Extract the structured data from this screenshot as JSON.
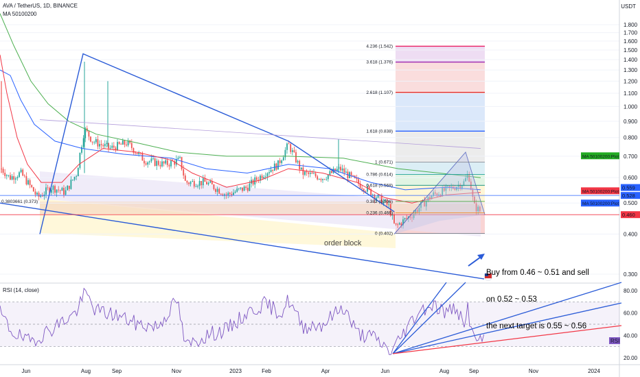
{
  "header": {
    "symbol": "AVA / TetherUS, 1D, BINANCE",
    "indicator": "MA 50100200",
    "currency": "USDT"
  },
  "annotations": {
    "order_block": "order block",
    "note_lines": [
      "Buy from 0.46 ~ 0.51 and sell",
      "on 0.52 ~ 0.53",
      "the next target is 0.55 ~ 0.56"
    ]
  },
  "colors": {
    "up": "#26a69a",
    "down": "#ef5350",
    "trend": "#2a5bd7",
    "ma_green": "#4caf50",
    "ma_red": "#f23645",
    "ma_blue": "#2962ff",
    "rsi": "#7e57c2"
  },
  "chart_data": [
    {
      "type": "candlestick",
      "title": "AVA / TetherUS, 1D, BINANCE",
      "y_axis": {
        "scale": "log",
        "range": [
          0.26,
          1.95
        ],
        "ticks": [
          "1.800",
          "1.700",
          "1.600",
          "1.500",
          "1.400",
          "1.300",
          "1.200",
          "1.100",
          "1.000",
          "0.900",
          "0.800",
          "0.700",
          "0.600",
          "0.500",
          "0.400",
          "0.300"
        ]
      },
      "x_axis": {
        "ticks": [
          "Jun",
          "Aug",
          "Sep",
          "Nov",
          "2023",
          "Feb",
          "Apr",
          "Jun",
          "Aug",
          "Sep",
          "Nov",
          "2024"
        ]
      },
      "price_labels": [
        {
          "text": "MA 50100200:Plot",
          "value": 0.702,
          "color": "#22ab22"
        },
        {
          "text": "0.559",
          "value": 0.559,
          "color": "#2962ff"
        },
        {
          "text": "MA 50100200:Plot",
          "value": 0.546,
          "color": "#f23645"
        },
        {
          "text": "0.528",
          "value": 0.528,
          "color": "#2962ff"
        },
        {
          "text": "MA 50100200:Plot",
          "value": 0.5,
          "color": "#2962ff"
        },
        {
          "text": "0.460",
          "value": 0.46,
          "color": "#f23645"
        }
      ],
      "fibonacci": [
        {
          "level": "0 (0.402)",
          "value": 0.402
        },
        {
          "level": "0.236 (0.466)",
          "value": 0.466
        },
        {
          "level": "0.382 (0.506)",
          "value": 0.506
        },
        {
          "level": "0.618 (0.568)",
          "value": 0.568
        },
        {
          "level": "0.786 (0.614)",
          "value": 0.614
        },
        {
          "level": "1 (0.671)",
          "value": 0.671
        },
        {
          "level": "1.618 (0.838)",
          "value": 0.838
        },
        {
          "level": "2.618 (1.107)",
          "value": 1.107
        },
        {
          "level": "3.618 (1.376)",
          "value": 1.376
        },
        {
          "level": "4.236 (1.542)",
          "value": 1.542
        }
      ],
      "clipped_label": "0.3803661 (0.373)"
    },
    {
      "type": "line",
      "title": "RSI (14, close)",
      "badge": "RSI",
      "y_axis": {
        "ticks": [
          "80.00",
          "60.00",
          "40.00",
          "20.00"
        ]
      },
      "bands": [
        30,
        70
      ]
    }
  ]
}
